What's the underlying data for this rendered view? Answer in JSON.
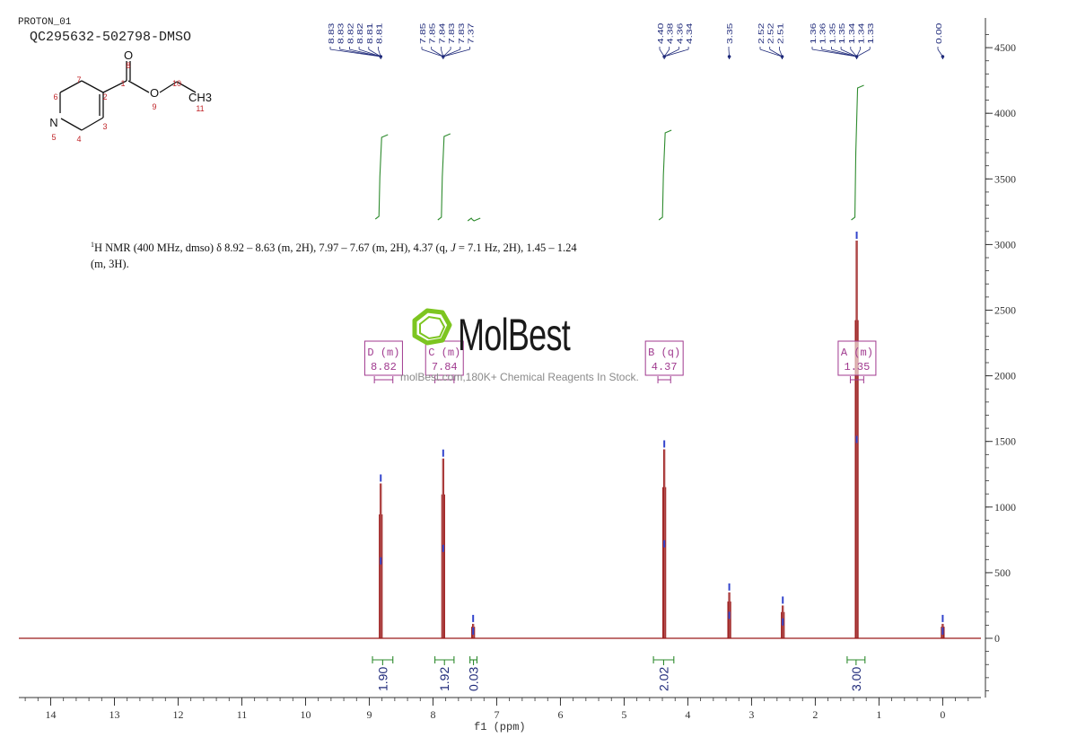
{
  "header": {
    "experiment": "PROTON_01",
    "sample_id": "QC295632-502798-DMSO"
  },
  "description_parts": [
    {
      "t": "1",
      "sup": true
    },
    {
      "t": "H NMR (400 MHz, dmso) δ 8.92 – 8.63 (m, 2H), 7.97 – 7.67 (m, 2H), 4.37 (q, "
    },
    {
      "t": "J",
      "italic": true
    },
    {
      "t": " = 7.1 Hz, 2H), 1.45 – 1.24 (m, 3H)."
    }
  ],
  "watermark": {
    "brand": "MolBest",
    "text": "molBest.com,180K+ Chemical Reagents In Stock."
  },
  "molecule": {
    "atoms": [
      "O",
      "O",
      "CH3",
      "N"
    ],
    "atom_numbers": [
      "1",
      "2",
      "3",
      "4",
      "5",
      "6",
      "7",
      "8",
      "9",
      "10",
      "11"
    ]
  },
  "colors": {
    "spectrum": "#9b1b1b",
    "integral": "#2e8b2e",
    "peak_label": "#1f2a7a",
    "multiplet": "#a03a8f",
    "peak_marker": "#3344cc",
    "axis": "#333333"
  },
  "chart_data": {
    "type": "line",
    "title": "",
    "xlabel": "f1 (ppm)",
    "ylabel": "",
    "x_reversed": true,
    "xlim": [
      14.5,
      -0.6
    ],
    "ylim": [
      -440,
      4700
    ],
    "x_ticks": [
      14,
      13,
      12,
      11,
      10,
      9,
      8,
      7,
      6,
      5,
      4,
      3,
      2,
      1,
      0
    ],
    "y_ticks": [
      0,
      500,
      1000,
      1500,
      2000,
      2500,
      3000,
      3500,
      4000,
      4500
    ],
    "peaks": [
      {
        "ppm": 8.82,
        "height": 1180
      },
      {
        "ppm": 7.84,
        "height": 1370
      },
      {
        "ppm": 7.37,
        "height": 110
      },
      {
        "ppm": 4.37,
        "height": 1440
      },
      {
        "ppm": 3.35,
        "height": 350
      },
      {
        "ppm": 2.51,
        "height": 250
      },
      {
        "ppm": 1.35,
        "height": 3030
      },
      {
        "ppm": 0.0,
        "height": 110
      }
    ],
    "peak_label_groups": [
      {
        "labels": [
          "8.83",
          "8.83",
          "8.82",
          "8.82",
          "8.81",
          "8.81"
        ],
        "target": 8.82
      },
      {
        "labels": [
          "7.85",
          "7.85",
          "7.84",
          "7.83",
          "7.83",
          "7.37"
        ],
        "target": 7.84
      },
      {
        "labels": [
          "4.40",
          "4.38",
          "4.36",
          "4.34"
        ],
        "target": 4.37
      },
      {
        "labels": [
          "3.35"
        ],
        "target": 3.35
      },
      {
        "labels": [
          "2.52",
          "2.52",
          "2.51"
        ],
        "target": 2.52
      },
      {
        "labels": [
          "1.36",
          "1.36",
          "1.35",
          "1.35",
          "1.34",
          "1.34",
          "1.33"
        ],
        "target": 1.35
      },
      {
        "labels": [
          "0.00"
        ],
        "target": 0.0
      }
    ],
    "multiplets": [
      {
        "letter": "D",
        "type": "(m)",
        "shift": "8.82",
        "from": 8.92,
        "to": 8.63
      },
      {
        "letter": "C",
        "type": "(m)",
        "shift": "7.84",
        "from": 7.97,
        "to": 7.67
      },
      {
        "letter": "B",
        "type": "(q)",
        "shift": "4.37",
        "from": 4.47,
        "to": 4.27
      },
      {
        "letter": "A",
        "type": "(m)",
        "shift": "1.35",
        "from": 1.45,
        "to": 1.24
      }
    ],
    "integrals": [
      {
        "value": "1.90",
        "from": 8.95,
        "to": 8.63
      },
      {
        "value": "1.92",
        "from": 7.97,
        "to": 7.67
      },
      {
        "value": "0.03",
        "from": 7.42,
        "to": 7.31
      },
      {
        "value": "2.02",
        "from": 4.54,
        "to": 4.22
      },
      {
        "value": "3.00",
        "from": 1.5,
        "to": 1.22
      }
    ]
  }
}
